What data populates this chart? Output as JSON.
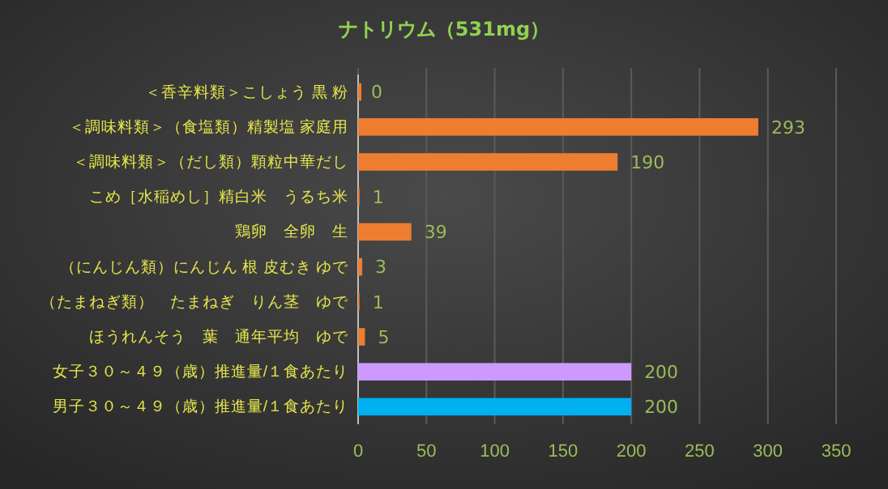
{
  "chart_data": {
    "type": "bar",
    "orientation": "horizontal",
    "title": "ナトリウム（531mg）",
    "categories": [
      "＜香辛料類＞こしょう 黒 粉",
      "＜調味料類＞（食塩類）精製塩 家庭用",
      "＜調味料類＞（だし類）顆粒中華だし",
      "こめ［水稲めし］精白米　うるち米",
      "鶏卵　全卵　生",
      "（にんじん類）にんじん 根 皮むき ゆで",
      "（たまねぎ類）　たまねぎ　りん茎　ゆで",
      "ほうれんそう　葉　通年平均　ゆで",
      "女子３０～４９（歳）推進量/１食あたり",
      "男子３０～４９（歳）推進量/１食あたり"
    ],
    "values": [
      0,
      293,
      190,
      1,
      39,
      3,
      1,
      5,
      200,
      200
    ],
    "colors": [
      "#ed7d31",
      "#ed7d31",
      "#ed7d31",
      "#ed7d31",
      "#ed7d31",
      "#ed7d31",
      "#ed7d31",
      "#ed7d31",
      "#cc99ff",
      "#00b0f0"
    ],
    "xlim": [
      0,
      350
    ],
    "xticks": [
      0,
      50,
      100,
      150,
      200,
      250,
      300,
      350
    ],
    "grid": "x",
    "data_labels": true
  }
}
